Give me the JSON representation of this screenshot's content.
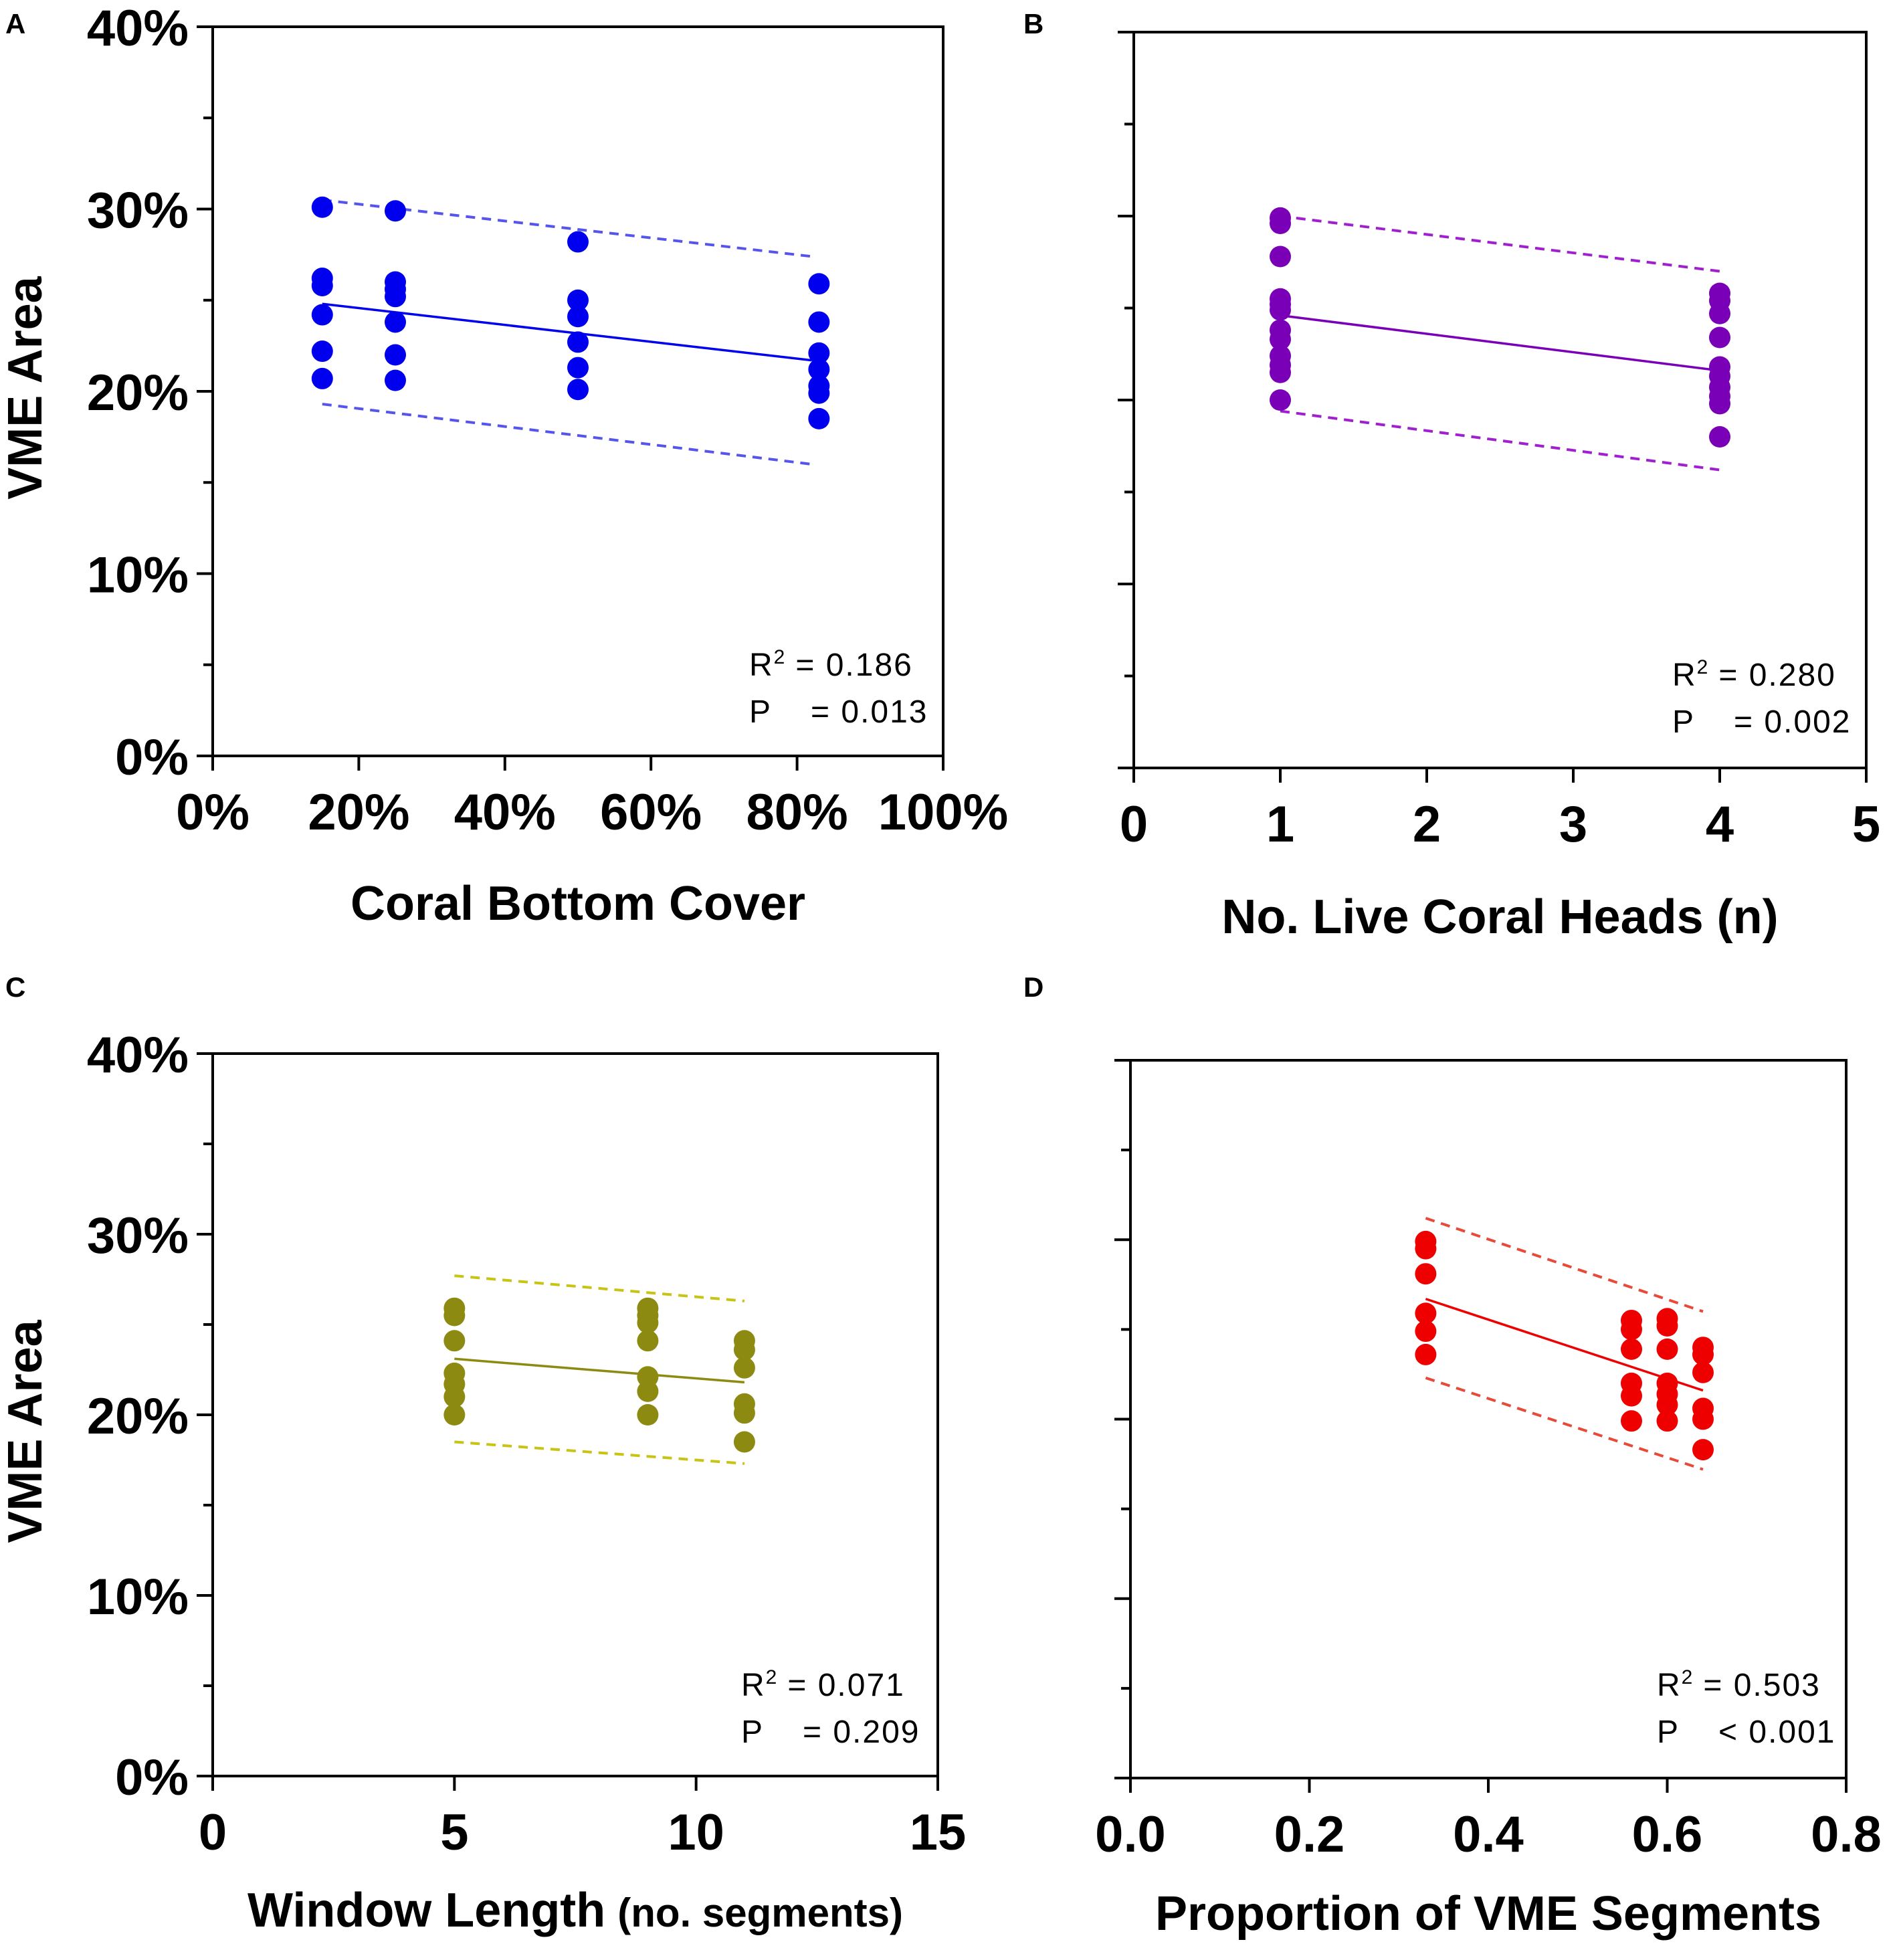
{
  "chart_data": [
    {
      "panel": "A",
      "type": "scatter",
      "xlabel": "Coral Bottom Cover",
      "ylabel": "VME Area",
      "xlim": [
        0,
        100
      ],
      "ylim": [
        0,
        40
      ],
      "x_ticks": [
        0,
        20,
        40,
        60,
        80,
        100
      ],
      "x_tick_labels": [
        "0%",
        "20%",
        "40%",
        "60%",
        "80%",
        "100%"
      ],
      "y_ticks": [
        0,
        10,
        20,
        30,
        40
      ],
      "y_tick_labels": [
        "0%",
        "10%",
        "20%",
        "30%",
        "40%"
      ],
      "color": "#0000ee",
      "ci_color": "#5555ee",
      "points": [
        [
          15,
          30.1
        ],
        [
          15,
          26.2
        ],
        [
          15,
          25.8
        ],
        [
          15,
          24.2
        ],
        [
          15,
          22.2
        ],
        [
          15,
          20.7
        ],
        [
          25,
          29.9
        ],
        [
          25,
          26.0
        ],
        [
          25,
          25.6
        ],
        [
          25,
          25.2
        ],
        [
          25,
          23.8
        ],
        [
          25,
          22.0
        ],
        [
          25,
          20.6
        ],
        [
          50,
          28.2
        ],
        [
          50,
          25.0
        ],
        [
          50,
          24.1
        ],
        [
          50,
          22.7
        ],
        [
          50,
          21.3
        ],
        [
          50,
          20.1
        ],
        [
          83,
          25.9
        ],
        [
          83,
          23.8
        ],
        [
          83,
          22.1
        ],
        [
          83,
          21.2
        ],
        [
          83,
          20.3
        ],
        [
          83,
          19.9
        ],
        [
          83,
          18.5
        ]
      ],
      "fit": [
        [
          15,
          24.8
        ],
        [
          82,
          21.7
        ]
      ],
      "ci_upper": [
        [
          15,
          30.5
        ],
        [
          82,
          27.4
        ]
      ],
      "ci_lower": [
        [
          15,
          19.3
        ],
        [
          82,
          16.0
        ]
      ],
      "r2_label": "R",
      "r2_sup": "2",
      "r2_value": "= 0.186",
      "p_label": "P",
      "p_value": "= 0.013"
    },
    {
      "panel": "B",
      "type": "scatter",
      "xlabel": "No. Live Coral Heads (n)",
      "ylabel": "",
      "xlim": [
        0,
        5
      ],
      "ylim": [
        0,
        40
      ],
      "x_ticks": [
        0,
        1,
        2,
        3,
        4,
        5
      ],
      "x_tick_labels": [
        "0",
        "1",
        "2",
        "3",
        "4",
        "5"
      ],
      "y_ticks": [
        0,
        5,
        10,
        15,
        20,
        25,
        30,
        35,
        40
      ],
      "y_tick_labels": [],
      "color": "#7a00b8",
      "ci_color": "#a020d0",
      "points": [
        [
          1,
          29.9
        ],
        [
          1,
          29.6
        ],
        [
          1,
          27.8
        ],
        [
          1,
          25.5
        ],
        [
          1,
          25.2
        ],
        [
          1,
          24.9
        ],
        [
          1,
          23.8
        ],
        [
          1,
          23.3
        ],
        [
          1,
          22.4
        ],
        [
          1,
          21.9
        ],
        [
          1,
          21.5
        ],
        [
          1,
          20.0
        ],
        [
          4,
          25.8
        ],
        [
          4,
          25.4
        ],
        [
          4,
          24.7
        ],
        [
          4,
          23.4
        ],
        [
          4,
          21.8
        ],
        [
          4,
          21.3
        ],
        [
          4,
          20.7
        ],
        [
          4,
          20.2
        ],
        [
          4,
          19.8
        ],
        [
          4,
          18.0
        ]
      ],
      "fit": [
        [
          1,
          24.6
        ],
        [
          4,
          21.6
        ]
      ],
      "ci_upper": [
        [
          1,
          30.0
        ],
        [
          4,
          27.0
        ]
      ],
      "ci_lower": [
        [
          1,
          19.4
        ],
        [
          4,
          16.2
        ]
      ],
      "r2_label": "R",
      "r2_sup": "2",
      "r2_value": "= 0.280",
      "p_label": "P",
      "p_value": "= 0.002"
    },
    {
      "panel": "C",
      "type": "scatter",
      "xlabel": "Window Length",
      "xlabel_suffix": "(no. segments)",
      "ylabel": "VME Area",
      "xlim": [
        0,
        15
      ],
      "ylim": [
        0,
        40
      ],
      "x_ticks": [
        0,
        5,
        10,
        15
      ],
      "x_tick_labels": [
        "0",
        "5",
        "10",
        "15"
      ],
      "y_ticks": [
        0,
        10,
        20,
        30,
        40
      ],
      "y_tick_labels": [
        "0%",
        "10%",
        "20%",
        "30%",
        "40%"
      ],
      "color": "#8c8a10",
      "ci_color": "#c8c414",
      "points": [
        [
          5,
          25.9
        ],
        [
          5,
          25.5
        ],
        [
          5,
          24.1
        ],
        [
          5,
          22.3
        ],
        [
          5,
          21.7
        ],
        [
          5,
          21.0
        ],
        [
          5,
          20.0
        ],
        [
          9,
          25.9
        ],
        [
          9,
          25.5
        ],
        [
          9,
          25.1
        ],
        [
          9,
          24.1
        ],
        [
          9,
          22.1
        ],
        [
          9,
          21.3
        ],
        [
          9,
          20.0
        ],
        [
          11,
          24.1
        ],
        [
          11,
          23.6
        ],
        [
          11,
          22.6
        ],
        [
          11,
          20.6
        ],
        [
          11,
          20.1
        ],
        [
          11,
          18.5
        ]
      ],
      "fit": [
        [
          5,
          23.1
        ],
        [
          11,
          21.8
        ]
      ],
      "ci_upper": [
        [
          5,
          27.7
        ],
        [
          11,
          26.3
        ]
      ],
      "ci_lower": [
        [
          5,
          18.5
        ],
        [
          11,
          17.3
        ]
      ],
      "r2_label": "R",
      "r2_sup": "2",
      "r2_value": "= 0.071",
      "p_label": "P",
      "p_value": "= 0.209"
    },
    {
      "panel": "D",
      "type": "scatter",
      "xlabel": "Proportion of VME Segments",
      "ylabel": "",
      "xlim": [
        0,
        0.8
      ],
      "ylim": [
        0,
        40
      ],
      "x_ticks": [
        0,
        0.2,
        0.4,
        0.6,
        0.8
      ],
      "x_tick_labels": [
        "0.0",
        "0.2",
        "0.4",
        "0.6",
        "0.8"
      ],
      "y_ticks": [
        0,
        5,
        10,
        15,
        20,
        25,
        30,
        35,
        40
      ],
      "y_tick_labels": [],
      "color": "#ee0000",
      "ci_color": "#e84a3a",
      "points": [
        [
          0.33,
          29.9
        ],
        [
          0.33,
          29.5
        ],
        [
          0.33,
          28.1
        ],
        [
          0.33,
          25.9
        ],
        [
          0.33,
          24.9
        ],
        [
          0.33,
          23.6
        ],
        [
          0.56,
          25.5
        ],
        [
          0.56,
          25.0
        ],
        [
          0.56,
          23.9
        ],
        [
          0.56,
          22.0
        ],
        [
          0.56,
          21.3
        ],
        [
          0.56,
          19.9
        ],
        [
          0.6,
          25.6
        ],
        [
          0.6,
          25.2
        ],
        [
          0.6,
          23.9
        ],
        [
          0.6,
          22.0
        ],
        [
          0.6,
          21.4
        ],
        [
          0.6,
          20.8
        ],
        [
          0.6,
          19.9
        ],
        [
          0.64,
          24.0
        ],
        [
          0.64,
          23.6
        ],
        [
          0.64,
          22.6
        ],
        [
          0.64,
          20.6
        ],
        [
          0.64,
          20.0
        ],
        [
          0.64,
          18.3
        ]
      ],
      "fit": [
        [
          0.33,
          26.7
        ],
        [
          0.64,
          21.6
        ]
      ],
      "ci_upper": [
        [
          0.33,
          31.2
        ],
        [
          0.64,
          26.0
        ]
      ],
      "ci_lower": [
        [
          0.33,
          22.3
        ],
        [
          0.64,
          17.2
        ]
      ],
      "r2_label": "R",
      "r2_sup": "2",
      "r2_value": "= 0.503",
      "p_label": "P",
      "p_value": "< 0.001"
    }
  ]
}
